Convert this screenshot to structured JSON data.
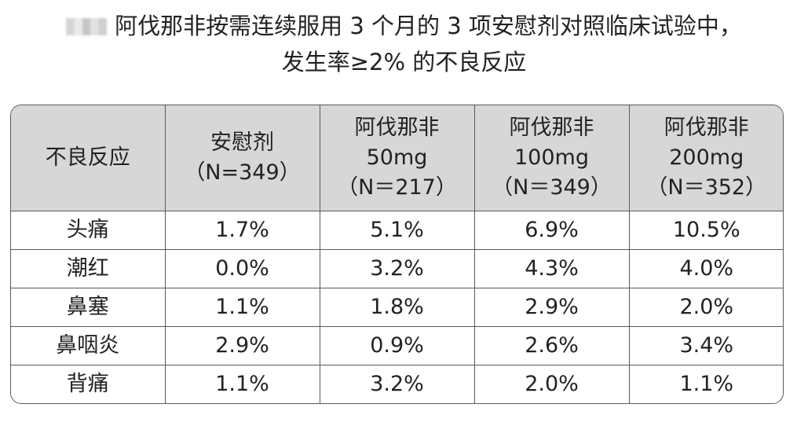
{
  "title": {
    "line1": "阿伐那非按需连续服用 3 个月的 3 项安慰剂对照临床试验中，",
    "line2": "发生率≥2% 的不良反应"
  },
  "table": {
    "header": [
      {
        "lines": [
          "不良反应"
        ]
      },
      {
        "lines": [
          "安慰剂",
          "（N=349）"
        ]
      },
      {
        "lines": [
          "阿伐那非",
          "50mg",
          "（N＝217）"
        ]
      },
      {
        "lines": [
          "阿伐那非",
          "100mg",
          "（N＝349）"
        ]
      },
      {
        "lines": [
          "阿伐那非",
          "200mg",
          "（N＝352）"
        ]
      }
    ],
    "rows": [
      [
        "头痛",
        "1.7%",
        "5.1%",
        "6.9%",
        "10.5%"
      ],
      [
        "潮红",
        "0.0%",
        "3.2%",
        "4.3%",
        "4.0%"
      ],
      [
        "鼻塞",
        "1.1%",
        "1.8%",
        "2.9%",
        "2.0%"
      ],
      [
        "鼻咽炎",
        "2.9%",
        "0.9%",
        "2.6%",
        "3.4%"
      ],
      [
        "背痛",
        "1.1%",
        "3.2%",
        "2.0%",
        "1.1%"
      ]
    ]
  }
}
